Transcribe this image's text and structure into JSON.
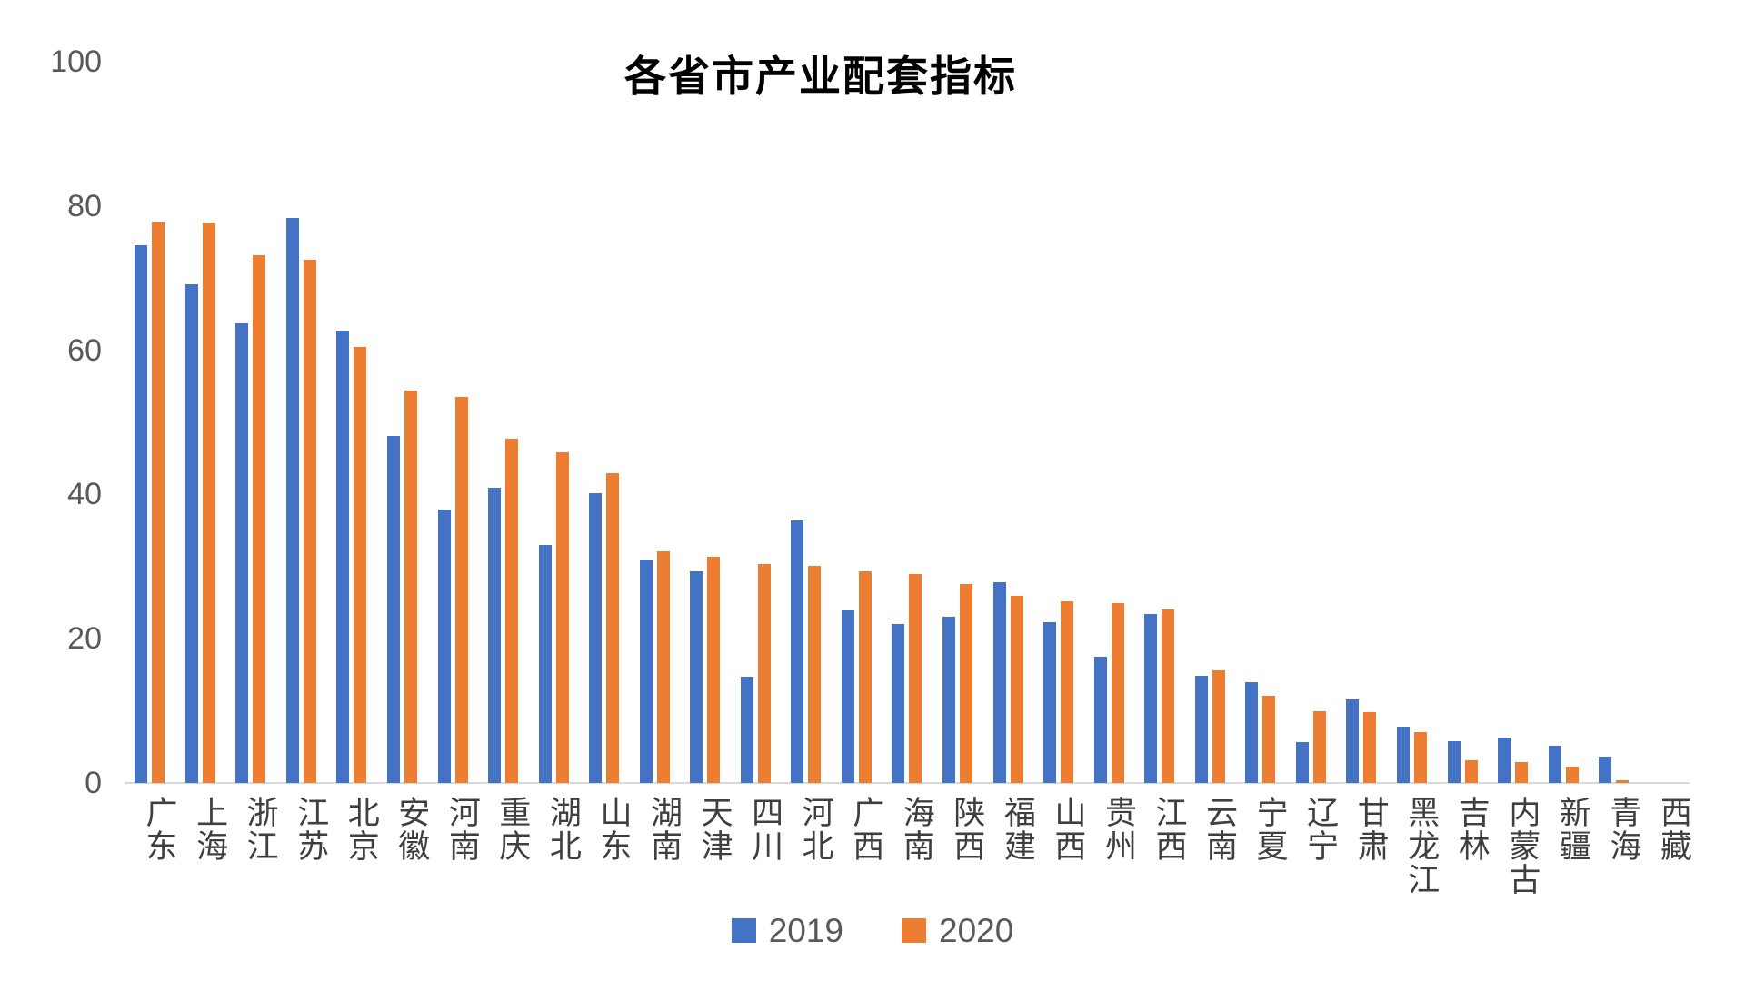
{
  "title": "各省市产业配套指标",
  "colors": {
    "series_2019": "#4472C4",
    "series_2020": "#ED7D31",
    "axis_text": "#595959",
    "category_text": "#3f3f3f",
    "axis_line": "#d9d9d9",
    "title_text": "#000000",
    "background": "#ffffff"
  },
  "legend": {
    "items": [
      {
        "label": "2019",
        "color": "#4472C4"
      },
      {
        "label": "2020",
        "color": "#ED7D31"
      }
    ]
  },
  "chart_data": {
    "type": "bar",
    "title": "各省市产业配套指标",
    "xlabel": "",
    "ylabel": "",
    "ylim": [
      0,
      100
    ],
    "yticks": [
      0,
      20,
      40,
      60,
      80,
      100
    ],
    "grid": false,
    "legend_position": "bottom",
    "categories": [
      "广东",
      "上海",
      "浙江",
      "江苏",
      "北京",
      "安徽",
      "河南",
      "重庆",
      "湖北",
      "山东",
      "湖南",
      "天津",
      "四川",
      "河北",
      "广西",
      "海南",
      "陕西",
      "福建",
      "山西",
      "贵州",
      "江西",
      "云南",
      "宁夏",
      "辽宁",
      "甘肃",
      "黑龙江",
      "吉林",
      "内蒙古",
      "新疆",
      "青海",
      "西藏"
    ],
    "series": [
      {
        "name": "2019",
        "color": "#4472C4",
        "values": [
          74.5,
          69.1,
          63.7,
          78.3,
          62.7,
          48.1,
          37.9,
          40.9,
          33.0,
          40.2,
          31.0,
          29.3,
          14.8,
          36.4,
          23.9,
          22.0,
          23.0,
          27.8,
          22.3,
          17.5,
          23.4,
          14.9,
          14.0,
          5.7,
          11.6,
          7.8,
          5.8,
          6.3,
          5.2,
          3.6,
          0
        ]
      },
      {
        "name": "2020",
        "color": "#ED7D31",
        "values": [
          77.8,
          77.7,
          73.2,
          72.6,
          60.5,
          54.4,
          53.5,
          47.7,
          45.8,
          42.9,
          32.1,
          31.3,
          30.3,
          30.1,
          29.4,
          29.0,
          27.6,
          25.9,
          25.2,
          25.0,
          24.1,
          15.6,
          12.1,
          10.0,
          9.8,
          7.1,
          3.1,
          2.9,
          2.3,
          0.4,
          0
        ]
      }
    ]
  }
}
